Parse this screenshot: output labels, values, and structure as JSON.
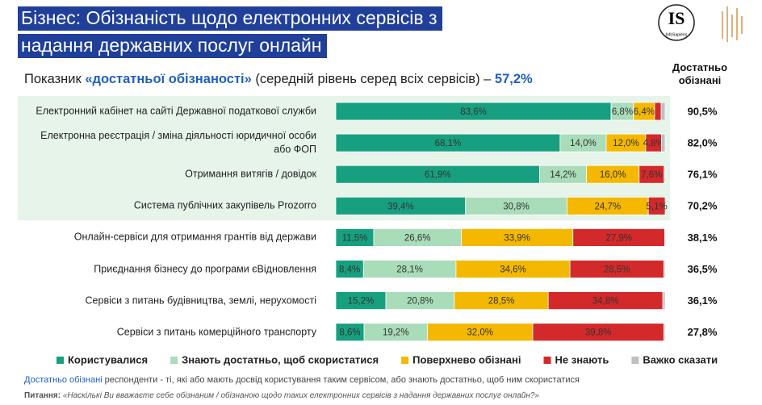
{
  "chart_data": {
    "type": "bar",
    "orientation": "horizontal",
    "stacked": true,
    "title_lines": [
      "Бізнес: Обізнаність щодо електронних сервісів з",
      "надання державних послуг онлайн"
    ],
    "logo": {
      "mark": "IS",
      "name": "InfoSapiens"
    },
    "subtitle_parts": [
      "Показник ",
      "«достатньої обізнаності»",
      " (середній рівень серед всіх сервісів) – ",
      "57,2%"
    ],
    "subtitle_value": 57.2,
    "categories": [
      "Електронний кабінет на сайті Державної податкової служби",
      "Електронна реєстрація / зміна діяльності юридичної особи\nабо ФОП",
      "Отримання витягів / довідок",
      "Система публічних закупівель Prozorro",
      "Онлайн-сервіси для отримання грантів від держави",
      "Приєднання бізнесу до програми єВідновлення",
      "Сервіси з питань будівництва, землі, нерухомості",
      "Сервіси з питань комерційного транспорту"
    ],
    "xlim": [
      0,
      100
    ],
    "series": [
      {
        "name": "Користувалися",
        "color": "#17a07f",
        "values": [
          83.6,
          68.1,
          61.9,
          39.4,
          11.5,
          8.4,
          15.2,
          8.6
        ],
        "value_labels": [
          "83,6%",
          "68,1%",
          "61,9%",
          "39,4%",
          "11,5%",
          "8,4%",
          "15,2%",
          "8,6%"
        ]
      },
      {
        "name": "Знають достатньо, щоб скористатися",
        "color": "#a9dcb9",
        "values": [
          6.8,
          14.0,
          14.2,
          30.8,
          26.6,
          28.1,
          20.8,
          19.2
        ],
        "value_labels": [
          "6,8%",
          "14,0%",
          "14,2%",
          "30,8%",
          "26,6%",
          "28,1%",
          "20,8%",
          "19,2%"
        ]
      },
      {
        "name": "Поверхнево обізнані",
        "color": "#f5b800",
        "values": [
          6.4,
          12.0,
          16.0,
          24.7,
          33.9,
          34.6,
          28.5,
          32.0
        ],
        "value_labels": [
          "6,4%",
          "12,0%",
          "16,0%",
          "24,7%",
          "33,9%",
          "34,6%",
          "28,5%",
          "32,0%"
        ]
      },
      {
        "name": "Не знають",
        "color": "#d3292b",
        "values": [
          2.0,
          4.8,
          7.6,
          5.1,
          27.9,
          28.5,
          34.8,
          39.8
        ],
        "value_labels": [
          null,
          "4,8%",
          "7,6%",
          "5,1%",
          "27,9%",
          "28,5%",
          "34,8%",
          "39,8%"
        ]
      },
      {
        "name": "Важко сказати",
        "color": "#bfbfbf",
        "values": [
          1.2,
          1.1,
          0.3,
          0.0,
          0.1,
          0.4,
          0.7,
          0.4
        ],
        "value_labels": [
          null,
          null,
          null,
          null,
          null,
          null,
          null,
          null
        ]
      }
    ],
    "totals": {
      "title": "Достатньо\nобізнані",
      "values": [
        90.5,
        82.0,
        76.1,
        70.2,
        38.1,
        36.5,
        36.1,
        27.8
      ],
      "value_labels": [
        "90,5%",
        "82,0%",
        "76,1%",
        "70,2%",
        "38,1%",
        "36,5%",
        "36,1%",
        "27,8%"
      ]
    },
    "footnote_parts": [
      "Достатньо обізнані",
      " респонденти - ті, які або мають досвід користування таким сервісом, або знають достатньо, щоб ним скористатися"
    ],
    "question_parts": [
      "Питання:",
      " «Наскількі Ви вважаєте себе обізнаним / обізнаною щодо таких електронних сервісів з надання державних послуг онлайн?»"
    ]
  }
}
